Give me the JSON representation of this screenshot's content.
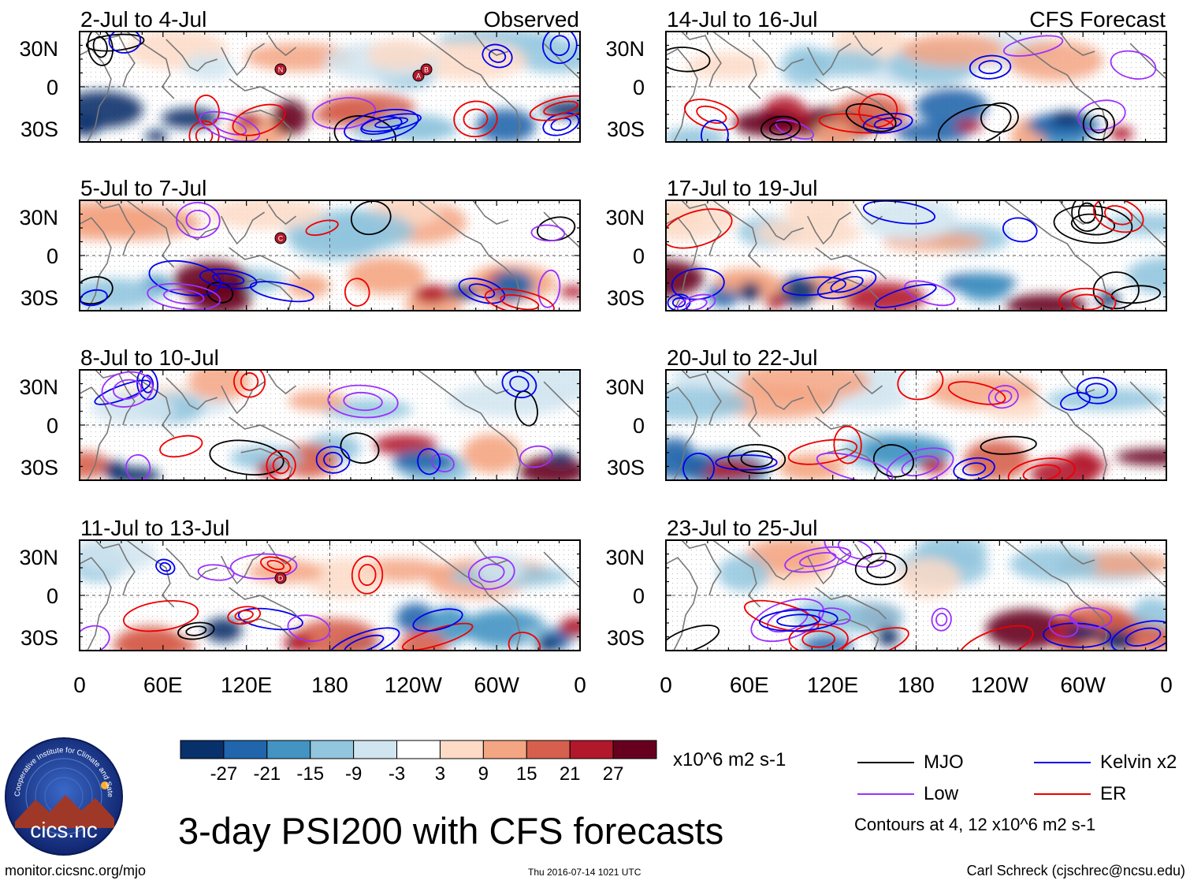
{
  "title": "3-day PSI200 with CFS forecasts",
  "columns": {
    "observed_label": "Observed",
    "forecast_label": "CFS Forecast"
  },
  "panels_observed": [
    {
      "label": "2-Jul to 4-Jul",
      "markers": [
        "N",
        "A",
        "B"
      ]
    },
    {
      "label": "5-Jul to 7-Jul",
      "markers": [
        "C"
      ]
    },
    {
      "label": "8-Jul to 10-Jul",
      "markers": []
    },
    {
      "label": "11-Jul to 13-Jul",
      "markers": [
        "D"
      ]
    }
  ],
  "panels_forecast": [
    {
      "label": "14-Jul to 16-Jul"
    },
    {
      "label": "17-Jul to 19-Jul"
    },
    {
      "label": "20-Jul to 22-Jul"
    },
    {
      "label": "23-Jul to 25-Jul"
    }
  ],
  "lat_ticks": [
    "30N",
    "0",
    "30S"
  ],
  "lon_ticks": [
    "0",
    "60E",
    "120E",
    "180",
    "120W",
    "60W",
    "0"
  ],
  "colorbar": {
    "units": "x10^6 m2 s-1",
    "tick_labels": [
      "-27",
      "-21",
      "-15",
      "-9",
      "-3",
      "3",
      "9",
      "15",
      "21",
      "27"
    ],
    "colors": [
      "#08306b",
      "#2166ac",
      "#4393c3",
      "#92c5de",
      "#d1e5f0",
      "#ffffff",
      "#fddbc7",
      "#f4a582",
      "#d6604d",
      "#b2182b",
      "#67001f"
    ]
  },
  "legend": {
    "items": [
      {
        "label": "MJO",
        "color": "#000000"
      },
      {
        "label": "Kelvin x2",
        "color": "#0000ee"
      },
      {
        "label": "Low",
        "color": "#9b30ff"
      },
      {
        "label": "ER",
        "color": "#ee0000"
      }
    ],
    "note": "Contours at 4, 12 x10^6 m2 s-1"
  },
  "logo": {
    "text": "cics.nc",
    "ring_text": "Cooperative Institute for Climate and Satellites"
  },
  "footer": {
    "url": "monitor.cicsnc.org/mjo",
    "timestamp": "Thu 2016-07-14 1021 UTC",
    "author": "Carl Schreck (cjschrec@ncsu.edu)"
  }
}
